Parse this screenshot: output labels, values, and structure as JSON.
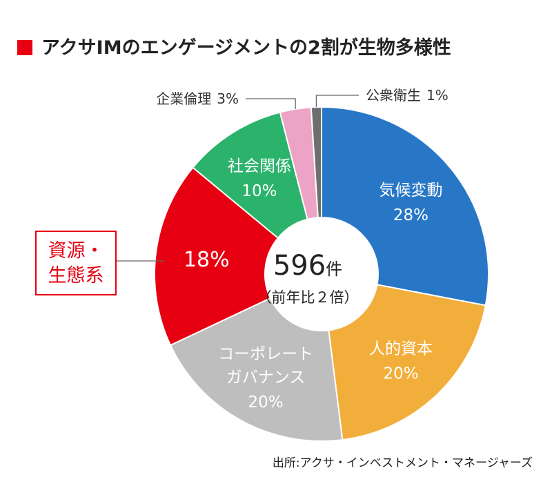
{
  "chart_data": {
    "type": "pie",
    "style": "donut",
    "title": "アクサIMのエンゲージメントの2割が生物多様性",
    "center": {
      "value": "596",
      "unit": "件",
      "note": "（前年比２倍）"
    },
    "slices": [
      {
        "label": [
          "気候変動"
        ],
        "percent_label": "28%",
        "value": 28,
        "color": "#2777c6",
        "text_color": "#ffffff",
        "label_mode": "inside"
      },
      {
        "label": [
          "人的資本"
        ],
        "percent_label": "20%",
        "value": 20,
        "color": "#f2ae3b",
        "text_color": "#ffffff",
        "label_mode": "inside"
      },
      {
        "label": [
          "コーポレート",
          "ガバナンス"
        ],
        "percent_label": "20%",
        "value": 20,
        "color": "#bebebe",
        "text_color": "#ffffff",
        "label_mode": "inside"
      },
      {
        "label": [
          "資源・",
          "生態系"
        ],
        "percent_label": "18%",
        "value": 18,
        "color": "#e60012",
        "text_color": "#ffffff",
        "label_mode": "callout-box"
      },
      {
        "label": [
          "社会関係"
        ],
        "percent_label": "10%",
        "value": 10,
        "color": "#2cb36b",
        "text_color": "#ffffff",
        "label_mode": "inside"
      },
      {
        "label": [
          "企業倫理"
        ],
        "percent_label": "3%",
        "value": 3,
        "color": "#eda3c5",
        "text_color": "#333333",
        "label_mode": "leader-left"
      },
      {
        "label": [
          "公衆衛生"
        ],
        "percent_label": "1%",
        "value": 1,
        "color": "#6e6e6e",
        "text_color": "#333333",
        "label_mode": "leader-right"
      }
    ],
    "source": "出所:アクサ・インベストメント・マネージャーズ"
  },
  "colors": {
    "title_marker": "#e60012",
    "callout_border": "#e60012",
    "callout_text": "#e60012",
    "leader_line": "#666666",
    "text": "#222222",
    "hole": "#ffffff"
  }
}
